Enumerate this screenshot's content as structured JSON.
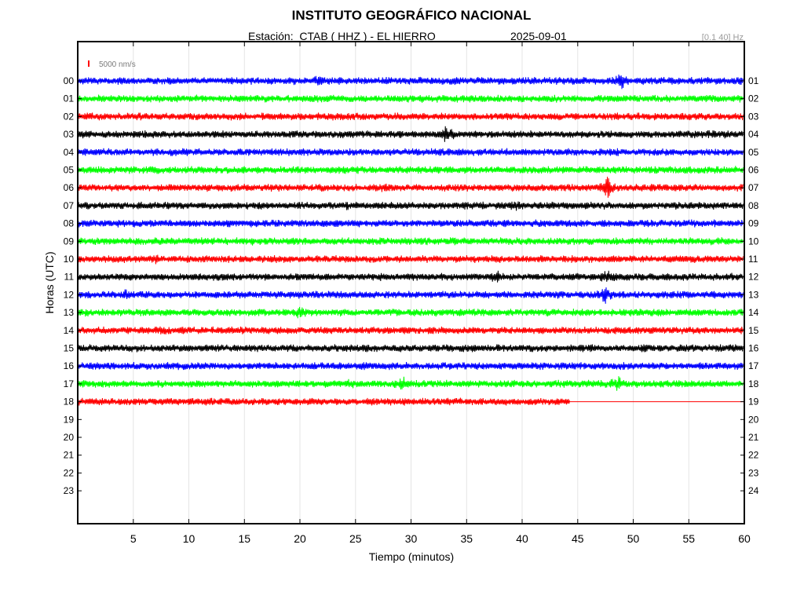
{
  "header": {
    "title": "INSTITUTO GEOGRÁFICO NACIONAL",
    "station": "Estación:  CTAB ( HHZ ) - EL HIERRO",
    "date": "2025-09-01",
    "filter": "[0.1 40] Hz"
  },
  "colors": {
    "blue": "#0000ff",
    "green": "#00ff00",
    "red": "#ff0000",
    "black": "#000000"
  },
  "chart_data": {
    "type": "line",
    "xlabel": "Tiempo (minutos)",
    "ylabel": "Horas (UTC)",
    "xlim": [
      0,
      60
    ],
    "x_ticks": [
      5,
      10,
      15,
      20,
      25,
      30,
      35,
      40,
      45,
      50,
      55,
      60
    ],
    "scale_label": "5000 nm/s",
    "left_labels": [
      "00",
      "01",
      "02",
      "03",
      "04",
      "05",
      "06",
      "07",
      "08",
      "09",
      "10",
      "11",
      "12",
      "13",
      "14",
      "15",
      "16",
      "17",
      "18",
      "19",
      "20",
      "21",
      "22",
      "23"
    ],
    "right_labels": [
      "01",
      "02",
      "03",
      "04",
      "05",
      "06",
      "07",
      "08",
      "09",
      "10",
      "11",
      "12",
      "13",
      "14",
      "15",
      "16",
      "17",
      "18",
      "19",
      "20",
      "21",
      "22",
      "23",
      "24"
    ],
    "color_cycle": [
      "blue",
      "green",
      "red",
      "black"
    ],
    "recorded_hours": 19,
    "last_trace_end_minute": 44.3,
    "events": [
      {
        "hour": 0,
        "minute": 21.6,
        "amp": 1.6
      },
      {
        "hour": 0,
        "minute": 48.9,
        "amp": 2.2
      },
      {
        "hour": 1,
        "minute": 30.6,
        "amp": 1.2
      },
      {
        "hour": 2,
        "minute": 28.4,
        "amp": 1.1
      },
      {
        "hour": 3,
        "minute": 33.2,
        "amp": 2.6
      },
      {
        "hour": 3,
        "minute": 56.8,
        "amp": 1.2
      },
      {
        "hour": 5,
        "minute": 7.2,
        "amp": 1.1
      },
      {
        "hour": 6,
        "minute": 27.5,
        "amp": 1.3
      },
      {
        "hour": 6,
        "minute": 38.4,
        "amp": 1.2
      },
      {
        "hour": 6,
        "minute": 47.7,
        "amp": 2.8
      },
      {
        "hour": 7,
        "minute": 24.2,
        "amp": 1.2
      },
      {
        "hour": 7,
        "minute": 39.6,
        "amp": 1.6
      },
      {
        "hour": 9,
        "minute": 15.1,
        "amp": 1.2
      },
      {
        "hour": 9,
        "minute": 29.2,
        "amp": 1.3
      },
      {
        "hour": 10,
        "minute": 7.2,
        "amp": 1.5
      },
      {
        "hour": 11,
        "minute": 27.2,
        "amp": 1.2
      },
      {
        "hour": 11,
        "minute": 37.8,
        "amp": 1.8
      },
      {
        "hour": 11,
        "minute": 47.6,
        "amp": 1.6
      },
      {
        "hour": 12,
        "minute": 4.4,
        "amp": 1.4
      },
      {
        "hour": 12,
        "minute": 47.4,
        "amp": 2.4
      },
      {
        "hour": 13,
        "minute": 20.0,
        "amp": 1.6
      },
      {
        "hour": 14,
        "minute": 7.6,
        "amp": 1.4
      },
      {
        "hour": 15,
        "minute": 11.6,
        "amp": 1.3
      },
      {
        "hour": 15,
        "minute": 35.6,
        "amp": 1.3
      },
      {
        "hour": 17,
        "minute": 24.4,
        "amp": 1.3
      },
      {
        "hour": 17,
        "minute": 29.2,
        "amp": 2.2
      },
      {
        "hour": 17,
        "minute": 48.6,
        "amp": 2.0
      }
    ]
  }
}
